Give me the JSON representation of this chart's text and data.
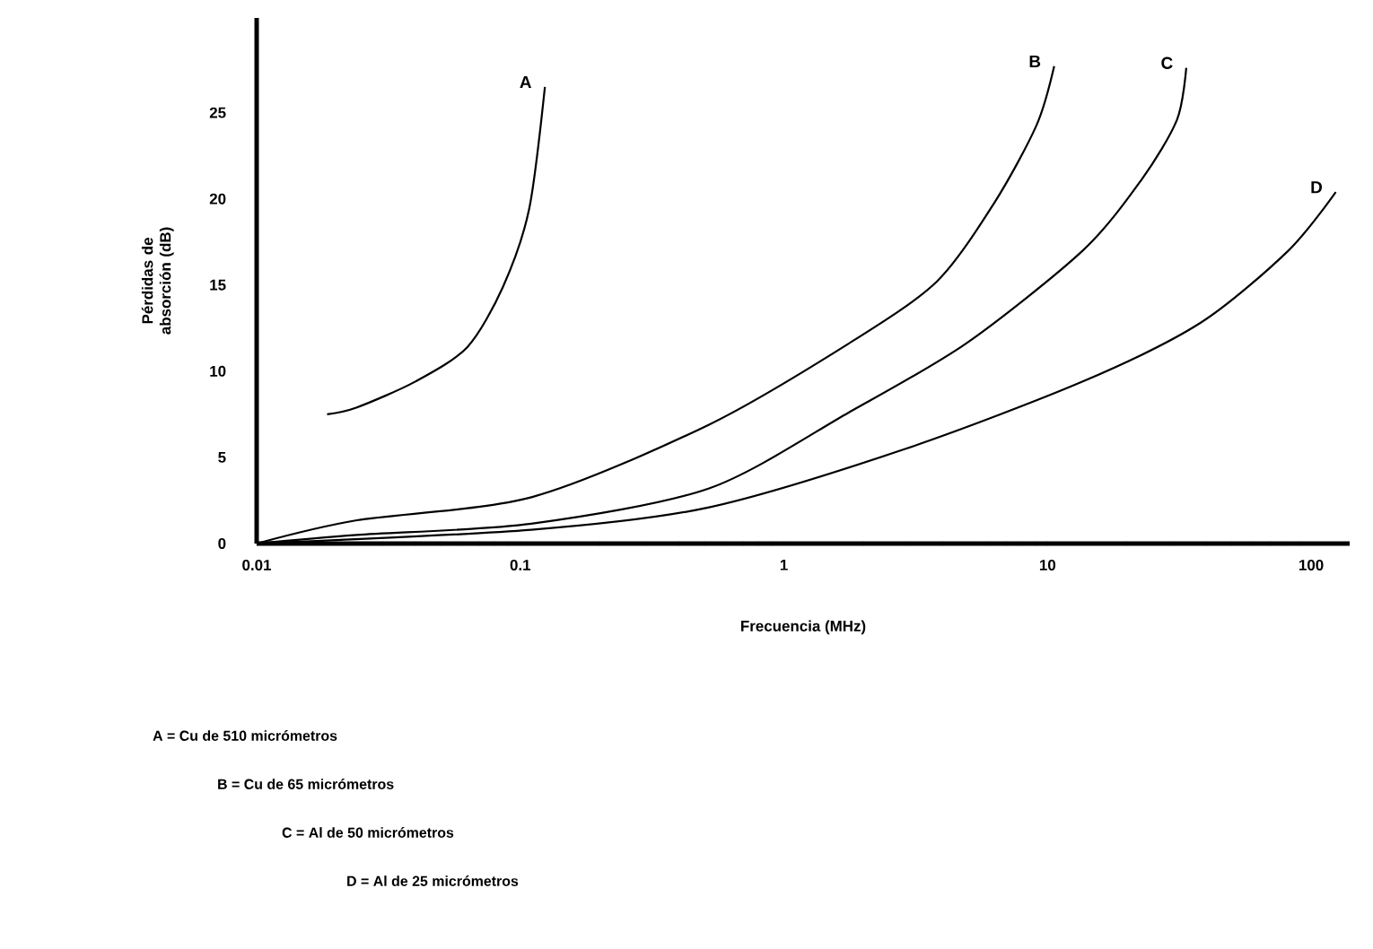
{
  "chart_data": {
    "type": "line",
    "xlabel": "Frecuencia (MHz)",
    "ylabel": "Pérdidas de absorción (dB)",
    "log": "x",
    "xlim": [
      0.01,
      140
    ],
    "ylim": [
      0,
      30.5
    ],
    "xticks": [
      0.01,
      0.1,
      1,
      10,
      100
    ],
    "yticks": [
      0,
      5,
      10,
      15,
      20,
      25
    ],
    "grid": false,
    "legend": false,
    "marker": "none",
    "line_style": "solid",
    "series": [
      {
        "name": "A",
        "color": "#000000",
        "x": [
          0.0185,
          0.024,
          0.04,
          0.063,
          0.086,
          0.108,
          0.124
        ],
        "values": [
          7.5,
          7.9,
          9.4,
          11.4,
          14.9,
          19.4,
          26.5
        ]
      },
      {
        "name": "B",
        "color": "#000000",
        "x": [
          0.01,
          0.024,
          0.111,
          0.52,
          1.76,
          3.8,
          6.3,
          9.1,
          10.6
        ],
        "values": [
          0,
          1.35,
          2.7,
          6.9,
          11.6,
          15.2,
          19.8,
          24.3,
          27.7
        ]
      },
      {
        "name": "C",
        "color": "#000000",
        "x": [
          0.01,
          0.024,
          0.11,
          0.52,
          1.76,
          4.9,
          13.6,
          22.7,
          31,
          33.6
        ],
        "values": [
          0,
          0.5,
          1.15,
          3.2,
          7.6,
          11.6,
          17.0,
          21.1,
          24.6,
          27.6
        ]
      },
      {
        "name": "D",
        "color": "#000000",
        "x": [
          0.01,
          0.11,
          0.52,
          2.9,
          13.6,
          38,
          82,
          124
        ],
        "values": [
          0,
          0.8,
          2.1,
          5.5,
          9.4,
          12.8,
          17.0,
          20.4
        ]
      }
    ],
    "annotations": [
      "A = Cu de 510 micrómetros",
      "B = Cu de 65 micrómetros",
      "C = Al de 50 micrómetros",
      "D = Al de 25 micrómetros"
    ]
  }
}
